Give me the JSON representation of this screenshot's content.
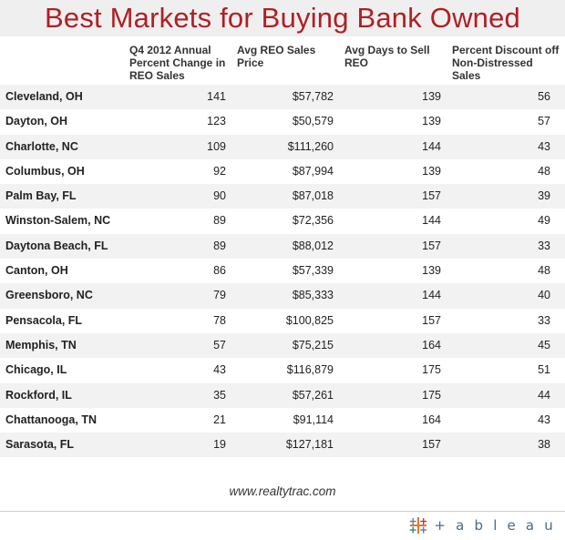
{
  "chart_data": {
    "type": "table",
    "title": "Best Markets for Buying Bank Owned",
    "columns": [
      "",
      "Q4 2012 Annual Percent Change in REO Sales",
      "Avg REO Sales Price",
      "Avg Days to Sell REO",
      "Percent Discount off Non-Distressed Sales"
    ],
    "rows": [
      {
        "city": "Cleveland, OH",
        "change": "141",
        "price": "$57,782",
        "days": "139",
        "discount": "56"
      },
      {
        "city": "Dayton, OH",
        "change": "123",
        "price": "$50,579",
        "days": "139",
        "discount": "57"
      },
      {
        "city": "Charlotte, NC",
        "change": "109",
        "price": "$111,260",
        "days": "144",
        "discount": "43"
      },
      {
        "city": "Columbus, OH",
        "change": "92",
        "price": "$87,994",
        "days": "139",
        "discount": "48"
      },
      {
        "city": "Palm Bay, FL",
        "change": "90",
        "price": "$87,018",
        "days": "157",
        "discount": "39"
      },
      {
        "city": "Winston-Salem, NC",
        "change": "89",
        "price": "$72,356",
        "days": "144",
        "discount": "49"
      },
      {
        "city": "Daytona Beach, FL",
        "change": "89",
        "price": "$88,012",
        "days": "157",
        "discount": "33"
      },
      {
        "city": "Canton, OH",
        "change": "86",
        "price": "$57,339",
        "days": "139",
        "discount": "48"
      },
      {
        "city": "Greensboro, NC",
        "change": "79",
        "price": "$85,333",
        "days": "144",
        "discount": "40"
      },
      {
        "city": "Pensacola, FL",
        "change": "78",
        "price": "$100,825",
        "days": "157",
        "discount": "33"
      },
      {
        "city": "Memphis, TN",
        "change": "57",
        "price": "$75,215",
        "days": "164",
        "discount": "45"
      },
      {
        "city": "Chicago, IL",
        "change": "43",
        "price": "$116,879",
        "days": "175",
        "discount": "51"
      },
      {
        "city": "Rockford, IL",
        "change": "35",
        "price": "$57,261",
        "days": "175",
        "discount": "44"
      },
      {
        "city": "Chattanooga, TN",
        "change": "21",
        "price": "$91,114",
        "days": "164",
        "discount": "43"
      },
      {
        "city": "Sarasota, FL",
        "change": "19",
        "price": "$127,181",
        "days": "157",
        "discount": "38"
      }
    ],
    "source": "www.realtytrac.com"
  },
  "logo": {
    "text": "+ a b l e a u",
    "accent": "#e8762c",
    "secondary": "#4a6a8a"
  },
  "colors": {
    "title": "#b01f24",
    "stripe": "#f2f2f2"
  }
}
